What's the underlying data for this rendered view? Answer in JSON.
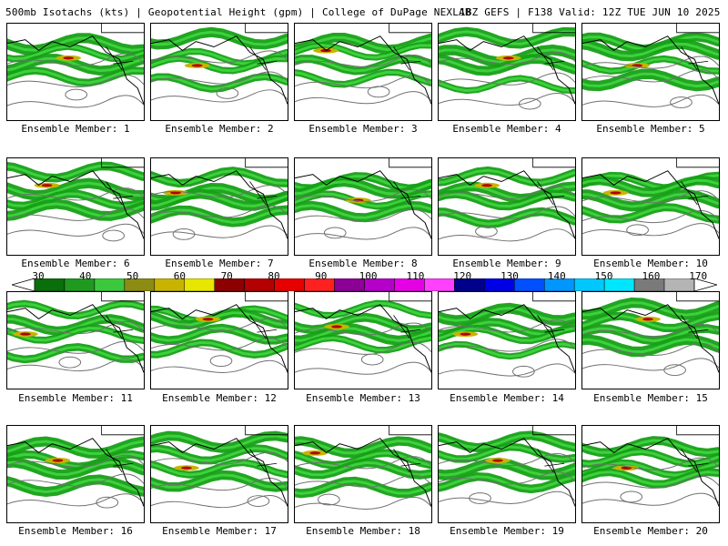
{
  "header": {
    "left": "500mb Isotachs (kts) | Geopotential Height (gpm) | College of DuPage NEXLAB",
    "right": "18Z GEFS | F138 Valid: 12Z TUE JUN 10 2025"
  },
  "caption_prefix": "Ensemble Member:",
  "members": [
    {
      "n": "1"
    },
    {
      "n": "2"
    },
    {
      "n": "3"
    },
    {
      "n": "4"
    },
    {
      "n": "5"
    },
    {
      "n": "6"
    },
    {
      "n": "7"
    },
    {
      "n": "8"
    },
    {
      "n": "9"
    },
    {
      "n": "10"
    },
    {
      "n": "11"
    },
    {
      "n": "12"
    },
    {
      "n": "13"
    },
    {
      "n": "14"
    },
    {
      "n": "15"
    },
    {
      "n": "16"
    },
    {
      "n": "17"
    },
    {
      "n": "18"
    },
    {
      "n": "19"
    },
    {
      "n": "20"
    }
  ],
  "colorbar": {
    "labels": [
      "30",
      "40",
      "50",
      "60",
      "70",
      "80",
      "90",
      "100",
      "110",
      "120",
      "130",
      "140",
      "150",
      "160",
      "170"
    ],
    "colors": [
      "#0a6e0a",
      "#1f9a1f",
      "#3cc83c",
      "#8c8c14",
      "#c8b400",
      "#e6e600",
      "#8c0000",
      "#b40000",
      "#e60000",
      "#ff2020",
      "#8c0096",
      "#b400c8",
      "#e600e6",
      "#ff40ff",
      "#00008c",
      "#0000e6",
      "#0050ff",
      "#0096ff",
      "#00c8ff",
      "#00e6ff",
      "#7a7a7a",
      "#b4b4b4"
    ]
  }
}
